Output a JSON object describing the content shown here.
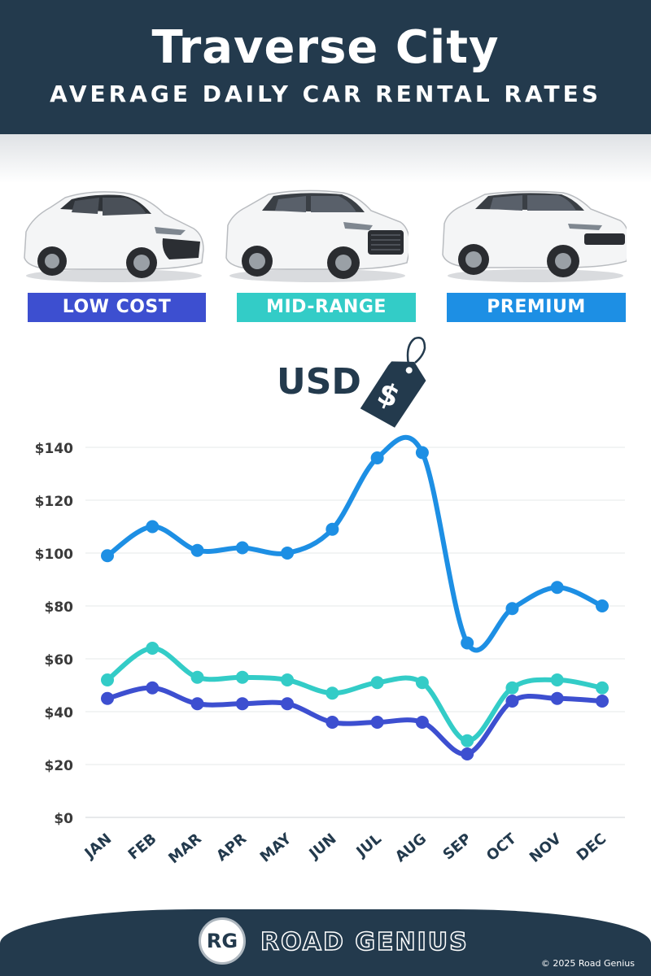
{
  "header": {
    "title": "Traverse City",
    "subtitle": "AVERAGE DAILY CAR RENTAL RATES"
  },
  "categories": [
    {
      "label": "LOW COST",
      "color": "#3d4fd0"
    },
    {
      "label": "MID-RANGE",
      "color": "#33ccc7"
    },
    {
      "label": "PREMIUM",
      "color": "#1d8fe4"
    }
  ],
  "currency_label": "USD",
  "currency_icon": "price-tag-dollar-icon",
  "chart_data": {
    "type": "line",
    "title": "",
    "xlabel": "",
    "ylabel": "",
    "categories": [
      "JAN",
      "FEB",
      "MAR",
      "APR",
      "MAY",
      "JUN",
      "JUL",
      "AUG",
      "SEP",
      "OCT",
      "NOV",
      "DEC"
    ],
    "ylim": [
      0,
      140
    ],
    "yticks": [
      "$0",
      "$20",
      "$40",
      "$60",
      "$80",
      "$100",
      "$120",
      "$140"
    ],
    "grid": true,
    "series": [
      {
        "name": "PREMIUM",
        "color": "#1d8fe4",
        "values": [
          99,
          110,
          101,
          102,
          100,
          109,
          136,
          138,
          66,
          79,
          87,
          80
        ]
      },
      {
        "name": "MID-RANGE",
        "color": "#33ccc7",
        "values": [
          52,
          64,
          53,
          53,
          52,
          47,
          51,
          51,
          29,
          49,
          52,
          49
        ]
      },
      {
        "name": "LOW COST",
        "color": "#3d4fd0",
        "values": [
          45,
          49,
          43,
          43,
          43,
          36,
          36,
          36,
          24,
          44,
          45,
          44
        ]
      }
    ]
  },
  "footer": {
    "logo_text": "RG",
    "brand": "ROAD GENIUS",
    "copyright": "© 2025 Road Genius"
  }
}
